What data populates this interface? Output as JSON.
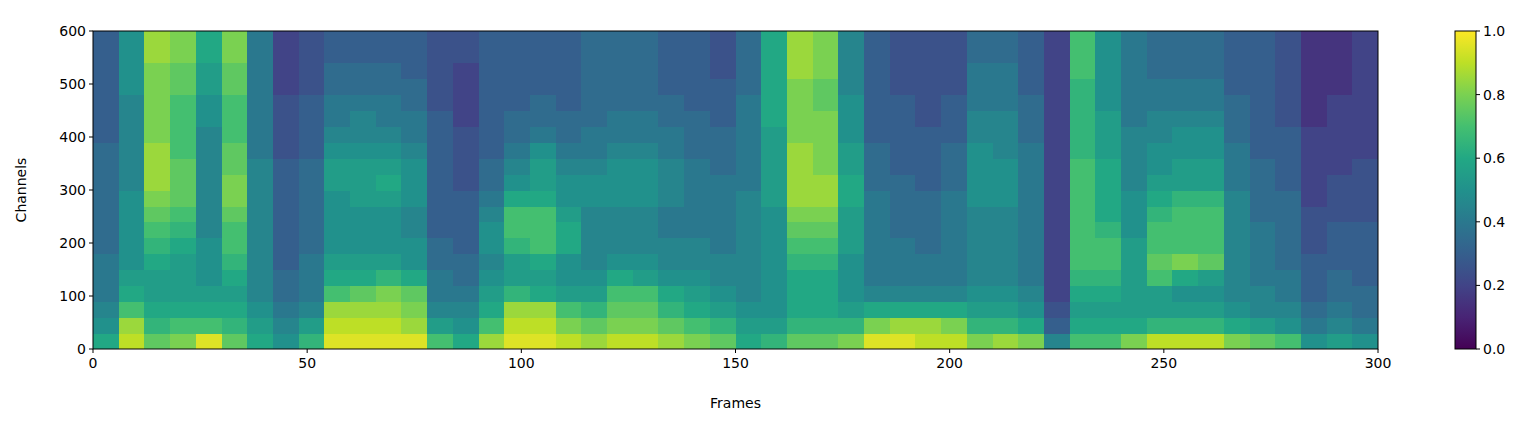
{
  "chart_data": {
    "type": "heatmap",
    "xlabel": "Frames",
    "ylabel": "Channels",
    "xlim": [
      0,
      300
    ],
    "ylim": [
      0,
      600
    ],
    "xticks": [
      0,
      50,
      100,
      150,
      200,
      250,
      300
    ],
    "yticks": [
      0,
      100,
      200,
      300,
      400,
      500,
      600
    ],
    "color_range": [
      0,
      1
    ],
    "color_ticks": [
      {
        "value": 0,
        "label": "0.0"
      },
      0.2,
      0.4,
      0.6,
      0.8,
      {
        "value": 1,
        "label": "1.0"
      }
    ],
    "cells": [
      [
        0.6,
        0.5,
        0.45,
        0.4,
        0.4,
        0.4,
        0.35,
        0.35,
        0.35,
        0.35,
        0.35,
        0.35,
        0.35,
        0.3,
        0.3,
        0.3,
        0.3,
        0.3,
        0.3,
        0.3
      ],
      [
        0.9,
        0.85,
        0.7,
        0.6,
        0.55,
        0.5,
        0.5,
        0.5,
        0.5,
        0.5,
        0.45,
        0.45,
        0.45,
        0.45,
        0.45,
        0.45,
        0.5,
        0.5,
        0.5,
        0.5
      ],
      [
        0.75,
        0.65,
        0.6,
        0.55,
        0.55,
        0.6,
        0.65,
        0.7,
        0.75,
        0.8,
        0.85,
        0.85,
        0.85,
        0.8,
        0.8,
        0.8,
        0.8,
        0.8,
        0.85,
        0.85
      ],
      [
        0.8,
        0.7,
        0.6,
        0.55,
        0.55,
        0.55,
        0.6,
        0.65,
        0.7,
        0.75,
        0.75,
        0.75,
        0.7,
        0.7,
        0.7,
        0.7,
        0.75,
        0.75,
        0.8,
        0.8
      ],
      [
        0.95,
        0.7,
        0.6,
        0.55,
        0.5,
        0.5,
        0.5,
        0.45,
        0.45,
        0.45,
        0.45,
        0.45,
        0.45,
        0.45,
        0.5,
        0.5,
        0.55,
        0.55,
        0.6,
        0.6
      ],
      [
        0.75,
        0.65,
        0.6,
        0.55,
        0.6,
        0.65,
        0.7,
        0.7,
        0.75,
        0.8,
        0.8,
        0.75,
        0.75,
        0.7,
        0.7,
        0.7,
        0.75,
        0.75,
        0.8,
        0.8
      ],
      [
        0.6,
        0.55,
        0.5,
        0.45,
        0.45,
        0.45,
        0.45,
        0.45,
        0.45,
        0.45,
        0.45,
        0.45,
        0.4,
        0.4,
        0.4,
        0.4,
        0.4,
        0.4,
        0.4,
        0.4
      ],
      [
        0.5,
        0.45,
        0.4,
        0.35,
        0.35,
        0.3,
        0.3,
        0.3,
        0.3,
        0.3,
        0.3,
        0.3,
        0.25,
        0.25,
        0.25,
        0.25,
        0.2,
        0.2,
        0.2,
        0.2
      ],
      [
        0.65,
        0.55,
        0.45,
        0.4,
        0.4,
        0.4,
        0.35,
        0.35,
        0.35,
        0.35,
        0.35,
        0.35,
        0.3,
        0.3,
        0.3,
        0.3,
        0.25,
        0.25,
        0.25,
        0.25
      ],
      [
        0.95,
        0.9,
        0.85,
        0.7,
        0.6,
        0.55,
        0.5,
        0.5,
        0.5,
        0.5,
        0.55,
        0.55,
        0.5,
        0.45,
        0.4,
        0.4,
        0.35,
        0.35,
        0.3,
        0.3
      ],
      [
        0.95,
        0.9,
        0.85,
        0.75,
        0.6,
        0.55,
        0.5,
        0.5,
        0.5,
        0.55,
        0.55,
        0.55,
        0.5,
        0.45,
        0.45,
        0.4,
        0.35,
        0.35,
        0.3,
        0.3
      ],
      [
        0.95,
        0.9,
        0.85,
        0.8,
        0.65,
        0.55,
        0.5,
        0.5,
        0.5,
        0.55,
        0.6,
        0.55,
        0.5,
        0.45,
        0.4,
        0.4,
        0.35,
        0.35,
        0.3,
        0.3
      ],
      [
        0.95,
        0.85,
        0.8,
        0.75,
        0.6,
        0.5,
        0.5,
        0.45,
        0.45,
        0.5,
        0.5,
        0.5,
        0.45,
        0.4,
        0.4,
        0.35,
        0.35,
        0.3,
        0.3,
        0.3
      ],
      [
        0.7,
        0.55,
        0.45,
        0.4,
        0.4,
        0.35,
        0.35,
        0.3,
        0.3,
        0.3,
        0.3,
        0.3,
        0.3,
        0.3,
        0.3,
        0.25,
        0.25,
        0.25,
        0.25,
        0.25
      ],
      [
        0.6,
        0.5,
        0.45,
        0.4,
        0.35,
        0.35,
        0.3,
        0.3,
        0.3,
        0.3,
        0.25,
        0.25,
        0.25,
        0.25,
        0.2,
        0.2,
        0.2,
        0.2,
        0.25,
        0.25
      ],
      [
        0.85,
        0.7,
        0.6,
        0.55,
        0.5,
        0.45,
        0.5,
        0.5,
        0.45,
        0.4,
        0.35,
        0.35,
        0.3,
        0.3,
        0.3,
        0.3,
        0.3,
        0.3,
        0.3,
        0.3
      ],
      [
        0.95,
        0.9,
        0.85,
        0.65,
        0.55,
        0.55,
        0.65,
        0.7,
        0.7,
        0.6,
        0.5,
        0.45,
        0.4,
        0.35,
        0.35,
        0.3,
        0.3,
        0.3,
        0.3,
        0.3
      ],
      [
        0.95,
        0.9,
        0.85,
        0.6,
        0.55,
        0.6,
        0.7,
        0.7,
        0.7,
        0.6,
        0.55,
        0.55,
        0.5,
        0.4,
        0.35,
        0.35,
        0.3,
        0.3,
        0.3,
        0.3
      ],
      [
        0.9,
        0.8,
        0.7,
        0.55,
        0.5,
        0.5,
        0.6,
        0.6,
        0.55,
        0.5,
        0.5,
        0.45,
        0.4,
        0.35,
        0.35,
        0.3,
        0.3,
        0.3,
        0.3,
        0.3
      ],
      [
        0.85,
        0.75,
        0.65,
        0.55,
        0.5,
        0.45,
        0.45,
        0.45,
        0.45,
        0.5,
        0.5,
        0.45,
        0.4,
        0.4,
        0.35,
        0.35,
        0.35,
        0.35,
        0.35,
        0.35
      ],
      [
        0.9,
        0.8,
        0.75,
        0.7,
        0.6,
        0.5,
        0.45,
        0.45,
        0.45,
        0.5,
        0.5,
        0.5,
        0.45,
        0.4,
        0.4,
        0.35,
        0.35,
        0.35,
        0.35,
        0.35
      ],
      [
        0.9,
        0.8,
        0.75,
        0.7,
        0.55,
        0.5,
        0.45,
        0.45,
        0.45,
        0.5,
        0.5,
        0.5,
        0.45,
        0.4,
        0.4,
        0.35,
        0.35,
        0.35,
        0.35,
        0.35
      ],
      [
        0.85,
        0.75,
        0.65,
        0.6,
        0.5,
        0.45,
        0.45,
        0.4,
        0.4,
        0.45,
        0.45,
        0.45,
        0.4,
        0.4,
        0.35,
        0.35,
        0.3,
        0.3,
        0.3,
        0.3
      ],
      [
        0.8,
        0.7,
        0.6,
        0.55,
        0.5,
        0.45,
        0.45,
        0.4,
        0.4,
        0.4,
        0.4,
        0.4,
        0.35,
        0.35,
        0.35,
        0.3,
        0.3,
        0.3,
        0.3,
        0.3
      ],
      [
        0.75,
        0.65,
        0.55,
        0.5,
        0.45,
        0.45,
        0.4,
        0.4,
        0.4,
        0.4,
        0.4,
        0.35,
        0.35,
        0.35,
        0.3,
        0.3,
        0.3,
        0.25,
        0.25,
        0.25
      ],
      [
        0.6,
        0.55,
        0.5,
        0.45,
        0.45,
        0.45,
        0.45,
        0.45,
        0.45,
        0.45,
        0.4,
        0.4,
        0.4,
        0.4,
        0.4,
        0.4,
        0.35,
        0.35,
        0.35,
        0.35
      ],
      [
        0.65,
        0.55,
        0.5,
        0.5,
        0.5,
        0.5,
        0.5,
        0.5,
        0.5,
        0.55,
        0.55,
        0.55,
        0.55,
        0.55,
        0.6,
        0.6,
        0.6,
        0.6,
        0.6,
        0.6
      ],
      [
        0.75,
        0.65,
        0.6,
        0.6,
        0.6,
        0.65,
        0.7,
        0.75,
        0.8,
        0.85,
        0.85,
        0.85,
        0.85,
        0.8,
        0.8,
        0.8,
        0.8,
        0.85,
        0.85,
        0.85
      ],
      [
        0.75,
        0.65,
        0.6,
        0.6,
        0.6,
        0.65,
        0.7,
        0.75,
        0.8,
        0.85,
        0.85,
        0.8,
        0.8,
        0.8,
        0.8,
        0.75,
        0.75,
        0.8,
        0.8,
        0.8
      ],
      [
        0.8,
        0.65,
        0.55,
        0.5,
        0.5,
        0.5,
        0.55,
        0.55,
        0.55,
        0.6,
        0.6,
        0.55,
        0.55,
        0.5,
        0.5,
        0.5,
        0.45,
        0.45,
        0.45,
        0.45
      ],
      [
        0.95,
        0.8,
        0.6,
        0.45,
        0.4,
        0.4,
        0.4,
        0.4,
        0.4,
        0.4,
        0.35,
        0.35,
        0.35,
        0.3,
        0.3,
        0.3,
        0.3,
        0.3,
        0.3,
        0.3
      ],
      [
        0.95,
        0.85,
        0.6,
        0.45,
        0.4,
        0.4,
        0.4,
        0.35,
        0.35,
        0.35,
        0.35,
        0.3,
        0.3,
        0.3,
        0.3,
        0.3,
        0.25,
        0.25,
        0.25,
        0.25
      ],
      [
        0.9,
        0.85,
        0.6,
        0.45,
        0.4,
        0.4,
        0.35,
        0.35,
        0.35,
        0.35,
        0.3,
        0.3,
        0.3,
        0.3,
        0.25,
        0.25,
        0.25,
        0.25,
        0.25,
        0.25
      ],
      [
        0.9,
        0.8,
        0.6,
        0.45,
        0.4,
        0.4,
        0.4,
        0.4,
        0.4,
        0.4,
        0.35,
        0.35,
        0.35,
        0.3,
        0.3,
        0.3,
        0.25,
        0.25,
        0.25,
        0.25
      ],
      [
        0.8,
        0.65,
        0.55,
        0.5,
        0.45,
        0.45,
        0.45,
        0.45,
        0.45,
        0.5,
        0.5,
        0.5,
        0.5,
        0.45,
        0.45,
        0.4,
        0.4,
        0.4,
        0.35,
        0.35
      ],
      [
        0.85,
        0.65,
        0.55,
        0.5,
        0.45,
        0.45,
        0.45,
        0.45,
        0.45,
        0.5,
        0.5,
        0.5,
        0.45,
        0.45,
        0.45,
        0.4,
        0.4,
        0.4,
        0.35,
        0.35
      ],
      [
        0.8,
        0.6,
        0.5,
        0.45,
        0.4,
        0.4,
        0.4,
        0.4,
        0.4,
        0.4,
        0.4,
        0.4,
        0.4,
        0.35,
        0.35,
        0.35,
        0.3,
        0.3,
        0.3,
        0.3
      ],
      [
        0.45,
        0.3,
        0.25,
        0.2,
        0.2,
        0.2,
        0.2,
        0.2,
        0.2,
        0.2,
        0.2,
        0.2,
        0.2,
        0.2,
        0.2,
        0.2,
        0.2,
        0.2,
        0.2,
        0.2
      ],
      [
        0.7,
        0.6,
        0.55,
        0.6,
        0.65,
        0.7,
        0.7,
        0.7,
        0.7,
        0.7,
        0.7,
        0.7,
        0.65,
        0.65,
        0.65,
        0.65,
        0.65,
        0.7,
        0.7,
        0.7
      ],
      [
        0.7,
        0.6,
        0.55,
        0.6,
        0.65,
        0.7,
        0.7,
        0.65,
        0.6,
        0.6,
        0.6,
        0.6,
        0.55,
        0.55,
        0.55,
        0.5,
        0.5,
        0.5,
        0.5,
        0.5
      ],
      [
        0.8,
        0.6,
        0.55,
        0.55,
        0.55,
        0.55,
        0.55,
        0.5,
        0.5,
        0.5,
        0.45,
        0.45,
        0.45,
        0.45,
        0.4,
        0.4,
        0.4,
        0.4,
        0.4,
        0.4
      ],
      [
        0.9,
        0.65,
        0.55,
        0.55,
        0.7,
        0.75,
        0.7,
        0.7,
        0.65,
        0.6,
        0.55,
        0.5,
        0.5,
        0.45,
        0.45,
        0.4,
        0.4,
        0.35,
        0.35,
        0.35
      ],
      [
        0.9,
        0.65,
        0.55,
        0.5,
        0.6,
        0.8,
        0.7,
        0.7,
        0.7,
        0.65,
        0.55,
        0.55,
        0.5,
        0.5,
        0.45,
        0.4,
        0.4,
        0.35,
        0.35,
        0.35
      ],
      [
        0.9,
        0.65,
        0.55,
        0.5,
        0.55,
        0.75,
        0.7,
        0.7,
        0.7,
        0.65,
        0.55,
        0.55,
        0.5,
        0.5,
        0.45,
        0.4,
        0.4,
        0.35,
        0.35,
        0.35
      ],
      [
        0.8,
        0.6,
        0.5,
        0.45,
        0.45,
        0.45,
        0.45,
        0.45,
        0.45,
        0.45,
        0.4,
        0.4,
        0.4,
        0.35,
        0.35,
        0.35,
        0.3,
        0.3,
        0.3,
        0.3
      ],
      [
        0.75,
        0.55,
        0.45,
        0.45,
        0.4,
        0.4,
        0.4,
        0.4,
        0.35,
        0.35,
        0.35,
        0.35,
        0.3,
        0.3,
        0.3,
        0.3,
        0.3,
        0.3,
        0.3,
        0.3
      ],
      [
        0.7,
        0.5,
        0.45,
        0.4,
        0.4,
        0.35,
        0.35,
        0.35,
        0.35,
        0.35,
        0.3,
        0.3,
        0.3,
        0.3,
        0.25,
        0.25,
        0.25,
        0.25,
        0.25,
        0.25
      ],
      [
        0.5,
        0.4,
        0.35,
        0.3,
        0.3,
        0.3,
        0.25,
        0.25,
        0.25,
        0.2,
        0.2,
        0.2,
        0.2,
        0.2,
        0.15,
        0.15,
        0.15,
        0.15,
        0.15,
        0.15
      ],
      [
        0.55,
        0.45,
        0.4,
        0.35,
        0.35,
        0.3,
        0.3,
        0.3,
        0.25,
        0.25,
        0.25,
        0.2,
        0.2,
        0.2,
        0.2,
        0.2,
        0.15,
        0.15,
        0.15,
        0.15
      ],
      [
        0.5,
        0.4,
        0.35,
        0.35,
        0.3,
        0.3,
        0.3,
        0.3,
        0.25,
        0.25,
        0.25,
        0.25,
        0.2,
        0.2,
        0.2,
        0.2,
        0.2,
        0.2,
        0.2,
        0.2
      ]
    ]
  }
}
